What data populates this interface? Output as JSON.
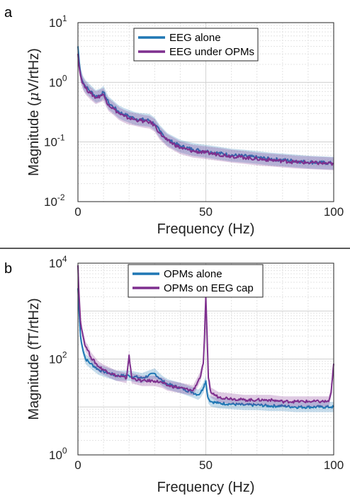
{
  "chart_data": [
    {
      "panel_label": "a",
      "type": "line",
      "xlabel": "Frequency (Hz)",
      "ylabel_prefix": "Magnitude (",
      "ylabel_mu": "μ",
      "ylabel_suffix": "V/rtHz)",
      "xlim": [
        0,
        100
      ],
      "ylim": [
        0.01,
        10
      ],
      "yscale": "log",
      "x_ticks": [
        0,
        50,
        100
      ],
      "x_tick_labels": [
        "0",
        "50",
        "100"
      ],
      "y_ticks": [
        0.01,
        0.1,
        1,
        10
      ],
      "y_tick_bases": [
        "10",
        "10",
        "10",
        "10"
      ],
      "y_tick_exps": [
        "-2",
        "-1",
        "0",
        "1"
      ],
      "grid": true,
      "legend_position": "top-right",
      "legend": [
        "EEG alone",
        "EEG under OPMs"
      ],
      "series": [
        {
          "name": "EEG alone",
          "color": "#1f77b4",
          "x": [
            0,
            0.5,
            1,
            2,
            3,
            5,
            7,
            9,
            10,
            11,
            12,
            14,
            16,
            18,
            20,
            22,
            24,
            26,
            28,
            30,
            32,
            35,
            40,
            45,
            50,
            55,
            60,
            65,
            70,
            75,
            80,
            85,
            90,
            95,
            100
          ],
          "y": [
            4.0,
            2.2,
            1.4,
            1.0,
            0.85,
            0.7,
            0.58,
            0.62,
            0.68,
            0.55,
            0.45,
            0.38,
            0.32,
            0.29,
            0.27,
            0.25,
            0.24,
            0.235,
            0.23,
            0.2,
            0.15,
            0.11,
            0.085,
            0.075,
            0.07,
            0.065,
            0.06,
            0.058,
            0.055,
            0.052,
            0.05,
            0.048,
            0.046,
            0.045,
            0.044
          ]
        },
        {
          "name": "EEG under OPMs",
          "color": "#7e2f8e",
          "x": [
            0,
            0.5,
            1,
            2,
            3,
            5,
            7,
            9,
            10,
            11,
            12,
            14,
            16,
            18,
            20,
            22,
            24,
            26,
            28,
            30,
            32,
            35,
            40,
            45,
            50,
            55,
            60,
            65,
            70,
            75,
            80,
            85,
            90,
            95,
            100
          ],
          "y": [
            3.0,
            1.8,
            1.3,
            0.95,
            0.8,
            0.65,
            0.55,
            0.6,
            0.62,
            0.5,
            0.42,
            0.36,
            0.3,
            0.27,
            0.25,
            0.24,
            0.23,
            0.22,
            0.215,
            0.19,
            0.14,
            0.105,
            0.08,
            0.07,
            0.066,
            0.062,
            0.058,
            0.055,
            0.052,
            0.05,
            0.048,
            0.046,
            0.045,
            0.044,
            0.043
          ]
        }
      ]
    },
    {
      "panel_label": "b",
      "type": "line",
      "xlabel": "Frequency (Hz)",
      "ylabel": "Magnitude (fT/rtHz)",
      "xlim": [
        0,
        100
      ],
      "ylim": [
        1,
        10000
      ],
      "yscale": "log",
      "x_ticks": [
        0,
        50,
        100
      ],
      "x_tick_labels": [
        "0",
        "50",
        "100"
      ],
      "y_ticks": [
        1,
        100,
        10000
      ],
      "y_tick_bases": [
        "10",
        "10",
        "10"
      ],
      "y_tick_exps": [
        "0",
        "2",
        "4"
      ],
      "grid": true,
      "legend_position": "top-right",
      "legend": [
        "OPMs alone",
        "OPMs on EEG cap"
      ],
      "series": [
        {
          "name": "OPMs alone",
          "color": "#1f77b4",
          "x": [
            0,
            0.5,
            1,
            2,
            3,
            5,
            8,
            10,
            15,
            20,
            25,
            30,
            33,
            35,
            40,
            45,
            47,
            48,
            49,
            49.5,
            50,
            50.5,
            51,
            52,
            55,
            60,
            65,
            70,
            75,
            80,
            85,
            90,
            95,
            99,
            100
          ],
          "y": [
            3000,
            900,
            300,
            150,
            100,
            80,
            60,
            55,
            45,
            45,
            40,
            50,
            35,
            30,
            25,
            20,
            18,
            20,
            25,
            30,
            35,
            20,
            15,
            13,
            12,
            11.5,
            11,
            11,
            10.5,
            10.5,
            10,
            10,
            10,
            10,
            10
          ]
        },
        {
          "name": "OPMs on EEG cap",
          "color": "#7e2f8e",
          "x": [
            0,
            0.3,
            0.7,
            1,
            2,
            3,
            4,
            5,
            8,
            10,
            15,
            19,
            20,
            21,
            25,
            30,
            33,
            35,
            40,
            45,
            47,
            48,
            49,
            49.5,
            50,
            50.5,
            51,
            52,
            55,
            60,
            65,
            70,
            75,
            80,
            85,
            90,
            95,
            98,
            99,
            99.5,
            100
          ],
          "y": [
            9000,
            3000,
            1200,
            600,
            300,
            180,
            150,
            110,
            70,
            60,
            45,
            40,
            120,
            40,
            35,
            35,
            32,
            28,
            25,
            22,
            35,
            45,
            80,
            300,
            2000,
            300,
            40,
            20,
            16,
            15,
            14,
            14,
            14,
            13,
            13,
            13,
            13,
            13,
            20,
            40,
            80
          ]
        }
      ]
    }
  ]
}
